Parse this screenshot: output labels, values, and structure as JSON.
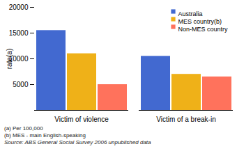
{
  "chart_data": {
    "type": "bar",
    "categories": [
      "Victim of violence",
      "Victim of a break-in"
    ],
    "series": [
      {
        "name": "Australia",
        "values": [
          15500,
          10500
        ]
      },
      {
        "name": "MES country(b)",
        "values": [
          11000,
          7000
        ]
      },
      {
        "name": "Non-MES country",
        "values": [
          5000,
          6500
        ]
      }
    ],
    "ylabel": "rate(a)",
    "ylim": [
      0,
      20000
    ],
    "yticks": [
      5000,
      10000,
      15000,
      20000
    ],
    "legend": "upper right",
    "annotations": [
      "(a) Per 100,000",
      "(b) MES - main English-speaking",
      "Source: ABS General Social Survey 2006 unpublished data"
    ]
  }
}
